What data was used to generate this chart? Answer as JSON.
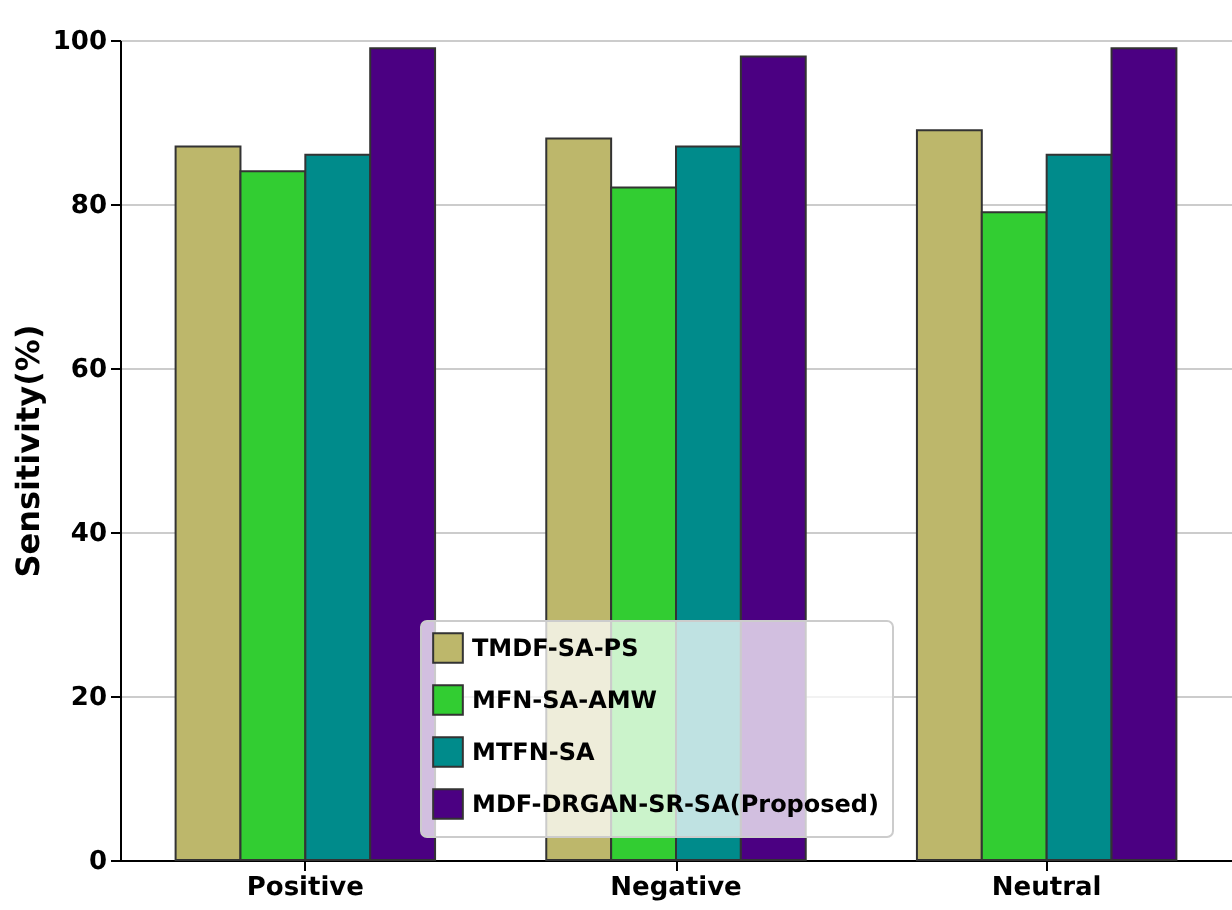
{
  "chart_data": {
    "type": "bar",
    "ylabel": "Sensitivity(%)",
    "categories": [
      "Positive",
      "Negative",
      "Neutral"
    ],
    "series": [
      {
        "name": "TMDF-SA-PS",
        "color": "#bdb76b",
        "values": [
          87,
          88,
          89
        ]
      },
      {
        "name": "MFN-SA-AMW",
        "color": "#32cd32",
        "values": [
          84,
          82,
          79
        ]
      },
      {
        "name": "MTFN-SA",
        "color": "#008b8b",
        "values": [
          86,
          87,
          86
        ]
      },
      {
        "name": "MDF-DRGAN-SR-SA(Proposed)",
        "color": "#4b0082",
        "values": [
          99,
          98,
          99
        ]
      }
    ],
    "ylim": [
      0,
      100
    ],
    "yticks": [
      0,
      20,
      40,
      60,
      80,
      100
    ],
    "grid": "y",
    "legend": "bottom"
  }
}
